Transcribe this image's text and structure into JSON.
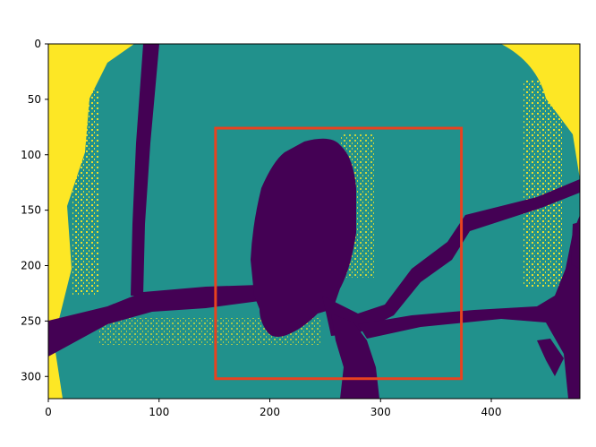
{
  "chart_data": {
    "type": "heatmap",
    "title": "",
    "xlabel": "",
    "ylabel": "",
    "xlim": [
      0,
      480
    ],
    "ylim": [
      320,
      0
    ],
    "y_axis_inverted": true,
    "x_ticks": [
      0,
      100,
      200,
      300,
      400
    ],
    "y_ticks": [
      0,
      50,
      100,
      150,
      200,
      250,
      300
    ],
    "colormap": "viridis",
    "levels": [
      {
        "value": 0,
        "color": "#440154"
      },
      {
        "value": 1,
        "color": "#21918c"
      },
      {
        "value": 2,
        "color": "#fde725"
      }
    ],
    "highlight_box": {
      "x0": 151,
      "y0": 76,
      "x1": 373,
      "y1": 302,
      "color": "#e8421f"
    },
    "grid": false,
    "legend": "none"
  }
}
